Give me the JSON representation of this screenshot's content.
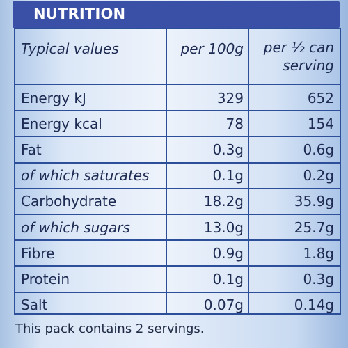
{
  "header": {
    "title": "NUTRITION"
  },
  "table": {
    "columns": {
      "label": "Typical values",
      "per100": "per 100g",
      "perServing_line1": "per ½ can",
      "perServing_line2": "serving"
    },
    "rows": [
      {
        "label": "Energy kJ",
        "per100": "329",
        "perServing": "652",
        "italic": false
      },
      {
        "label": "Energy kcal",
        "per100": "78",
        "perServing": "154",
        "italic": false
      },
      {
        "label": "Fat",
        "per100": "0.3g",
        "perServing": "0.6g",
        "italic": false
      },
      {
        "label": "of which saturates",
        "per100": "0.1g",
        "perServing": "0.2g",
        "italic": true
      },
      {
        "label": "Carbohydrate",
        "per100": "18.2g",
        "perServing": "35.9g",
        "italic": false
      },
      {
        "label": "of which sugars",
        "per100": "13.0g",
        "perServing": "25.7g",
        "italic": true
      },
      {
        "label": "Fibre",
        "per100": "0.9g",
        "perServing": "1.8g",
        "italic": false
      },
      {
        "label": "Protein",
        "per100": "0.1g",
        "perServing": "0.3g",
        "italic": false
      },
      {
        "label": "Salt",
        "per100": "0.07g",
        "perServing": "0.14g",
        "italic": false
      }
    ]
  },
  "footer": {
    "text": "This pack contains 2 servings."
  }
}
